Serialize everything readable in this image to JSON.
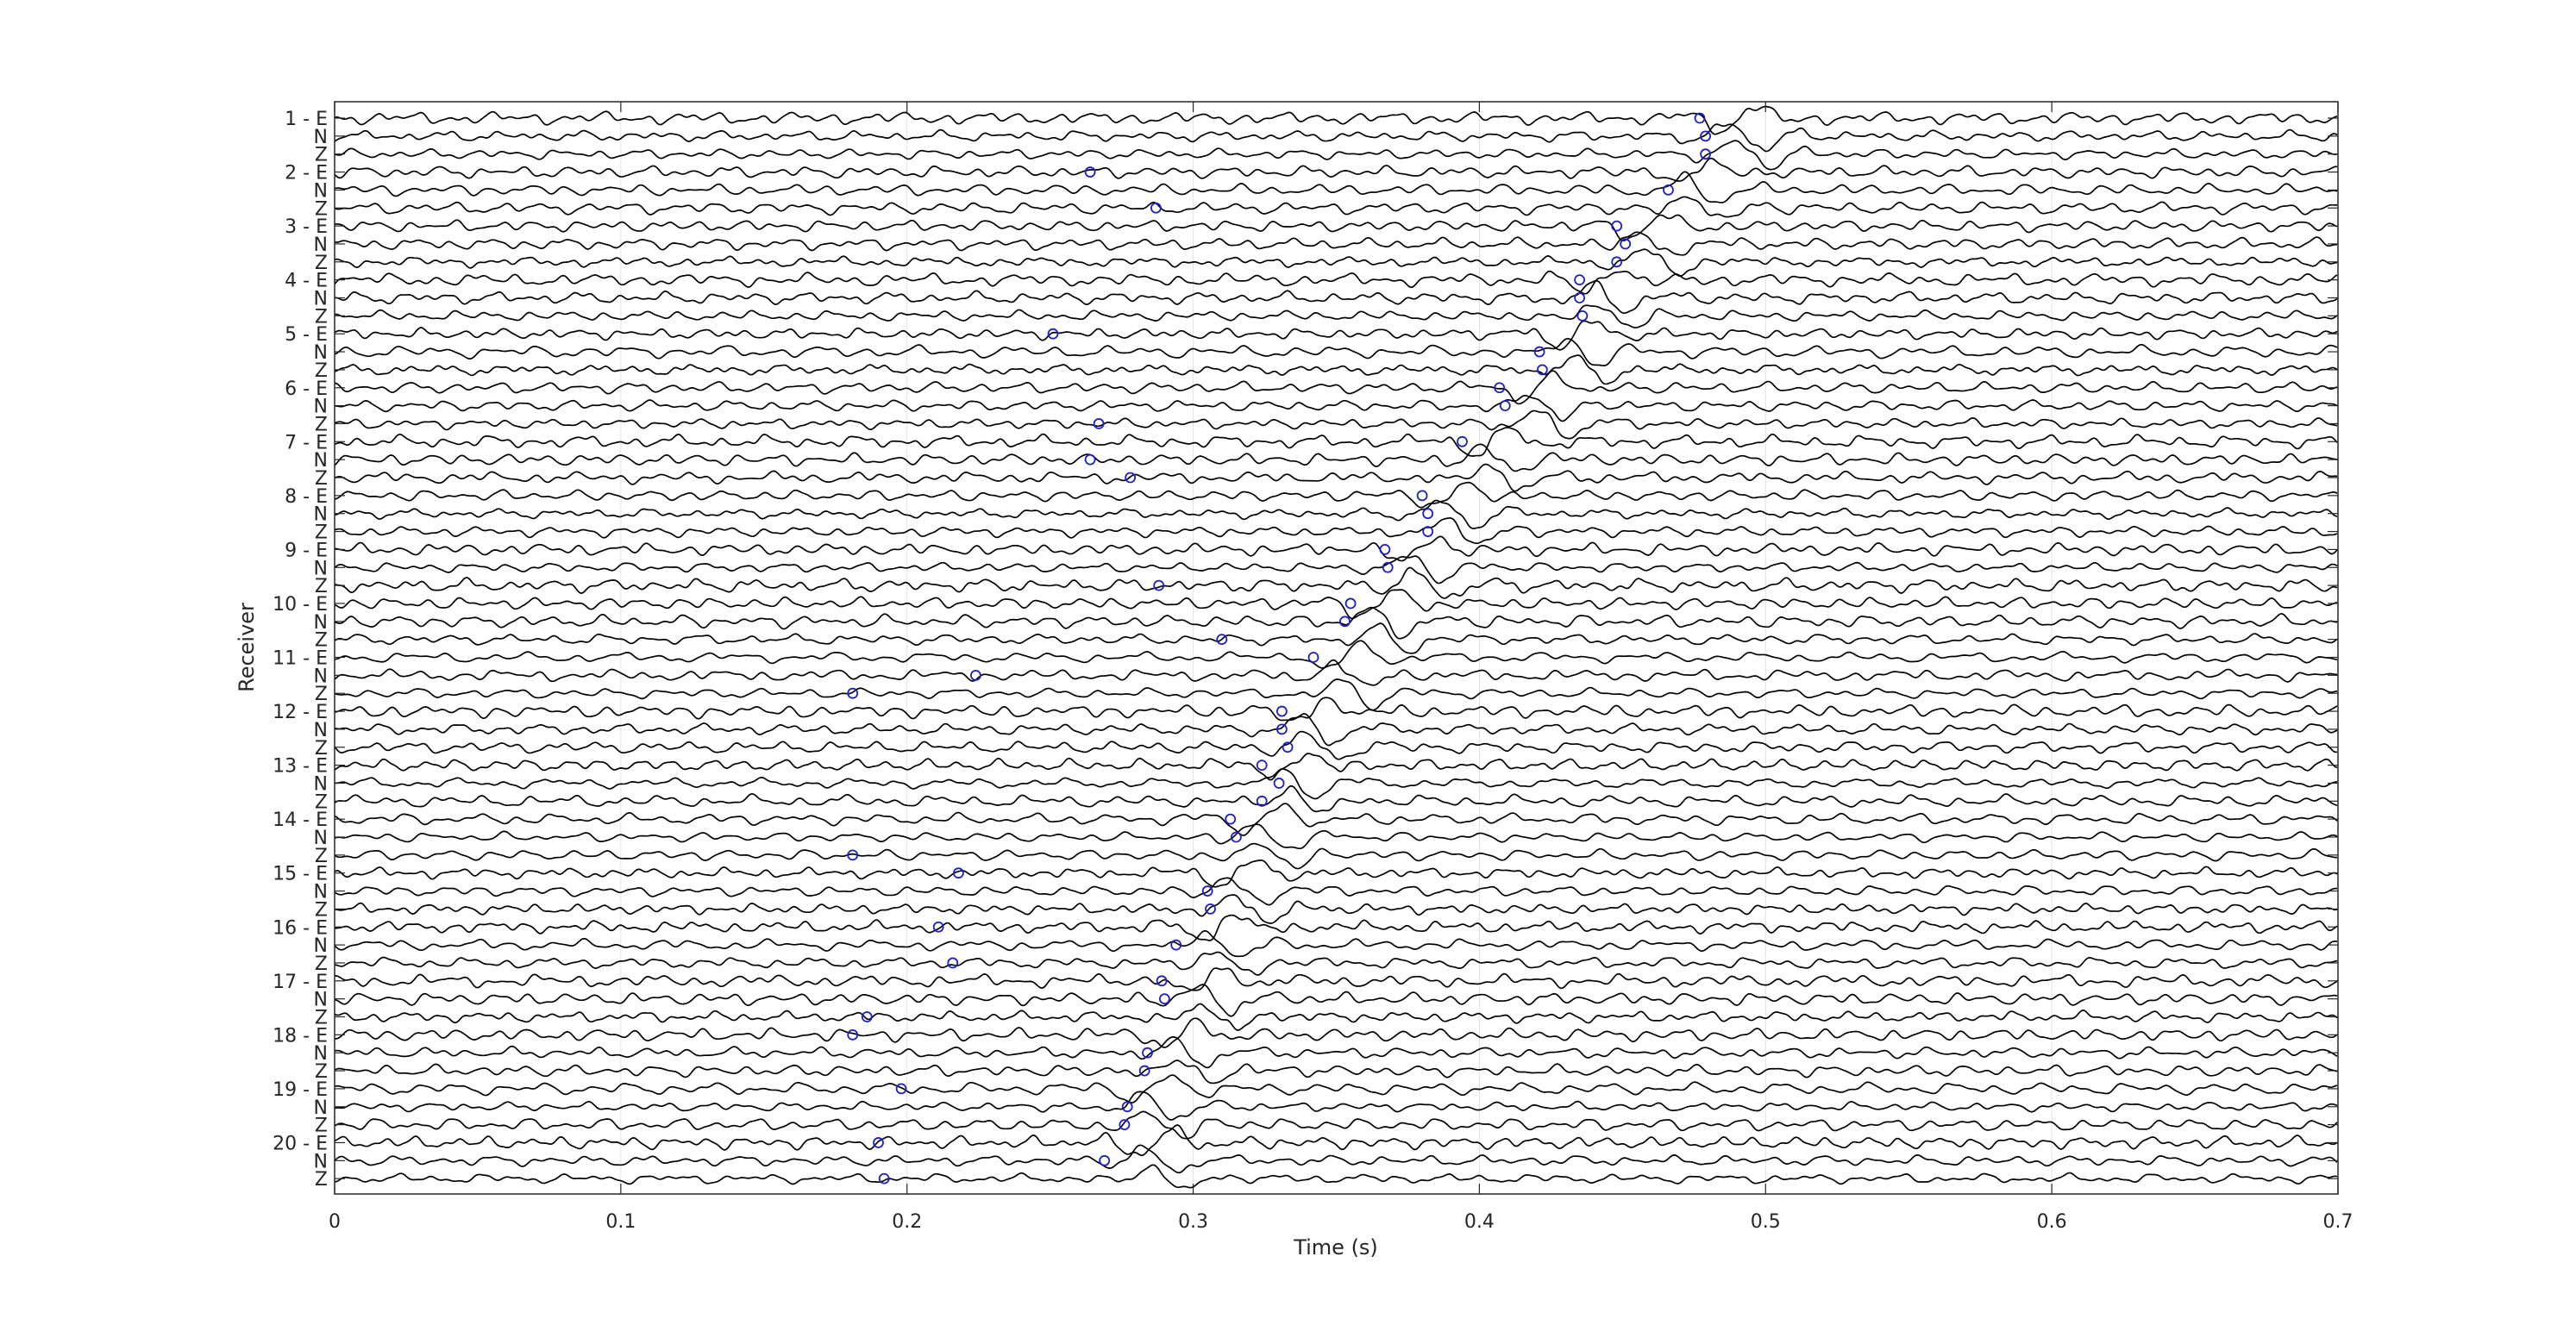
{
  "chart_data": {
    "type": "line",
    "title": "",
    "xlabel": "Time (s)",
    "ylabel": "Receiver",
    "xlim": [
      0,
      0.7
    ],
    "x_ticks": [
      0,
      0.1,
      0.2,
      0.3,
      0.4,
      0.5,
      0.6,
      0.7
    ],
    "x_tick_labels": [
      "0",
      "0.1",
      "0.2",
      "0.3",
      "0.4",
      "0.5",
      "0.6",
      "0.7"
    ],
    "grid": "x-only",
    "legend": "none",
    "colors": {
      "trace": "#000000",
      "pick": "#1f1fc8",
      "axis": "#262626",
      "grid": "#e3e3e3"
    },
    "arrivals": [
      0.493,
      0.477,
      0.461,
      0.445,
      0.436,
      0.423,
      0.407,
      0.392,
      0.381,
      0.367,
      0.355,
      0.343,
      0.337,
      0.327,
      0.318,
      0.311,
      0.307,
      0.298,
      0.288,
      0.289
    ],
    "channel_labels": [
      "1 - E",
      "N",
      "Z",
      "2 - E",
      "N",
      "Z",
      "3 - E",
      "N",
      "Z",
      "4 - E",
      "N",
      "Z",
      "5 - E",
      "N",
      "Z",
      "6 - E",
      "N",
      "Z",
      "7 - E",
      "N",
      "Z",
      "8 - E",
      "N",
      "Z",
      "9 - E",
      "N",
      "Z",
      "10 - E",
      "N",
      "Z",
      "11 - E",
      "N",
      "Z",
      "12 - E",
      "N",
      "Z",
      "13 - E",
      "N",
      "Z",
      "14 - E",
      "N",
      "Z",
      "15 - E",
      "N",
      "Z",
      "16 - E",
      "N",
      "Z",
      "17 - E",
      "N",
      "Z",
      "18 - E",
      "N",
      "Z",
      "19 - E",
      "N",
      "Z",
      "20 - E",
      "N",
      "Z"
    ],
    "picks": [
      [
        0.477
      ],
      [
        0.479
      ],
      [
        0.479
      ],
      [
        0.264
      ],
      [
        0.466
      ],
      [
        0.287
      ],
      [
        0.448
      ],
      [
        0.451
      ],
      [
        0.448
      ],
      [
        0.435
      ],
      [
        0.435
      ],
      [
        0.436
      ],
      [
        0.251
      ],
      [
        0.421
      ],
      [
        0.422
      ],
      [
        0.407
      ],
      [
        0.409
      ],
      [
        0.267
      ],
      [
        0.394
      ],
      [
        0.264
      ],
      [
        0.278
      ],
      [
        0.38
      ],
      [
        0.382
      ],
      [
        0.382
      ],
      [
        0.367
      ],
      [
        0.368
      ],
      [
        0.288
      ],
      [
        0.355
      ],
      [
        0.353
      ],
      [
        0.31
      ],
      [
        0.342
      ],
      [
        0.224
      ],
      [
        0.181
      ],
      [
        0.331
      ],
      [
        0.331
      ],
      [
        0.333
      ],
      [
        0.324
      ],
      [
        0.33
      ],
      [
        0.324
      ],
      [
        0.313
      ],
      [
        0.315
      ],
      [
        0.181
      ],
      [
        0.218
      ],
      [
        0.305
      ],
      [
        0.306
      ],
      [
        0.211
      ],
      [
        0.294
      ],
      [
        0.216
      ],
      [
        0.289
      ],
      [
        0.29
      ],
      [
        0.186
      ],
      [
        0.181
      ],
      [
        0.284
      ],
      [
        0.283
      ],
      [
        0.198
      ],
      [
        0.277
      ],
      [
        0.276
      ],
      [
        0.19
      ],
      [
        0.269
      ],
      [
        0.192
      ]
    ]
  }
}
